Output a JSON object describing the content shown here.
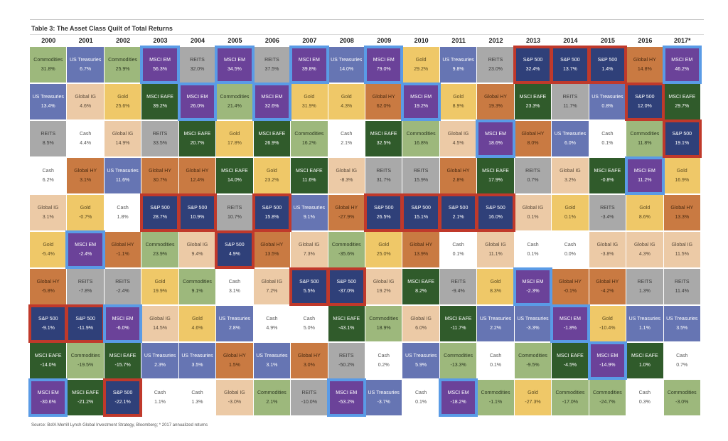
{
  "title": "Table 3: The Asset Class Quilt of Total Returns",
  "source": "Source: BofA Merrill Lynch Global Investment Strategy, Bloomberg; * 2017 annualized returns",
  "asset_colors": {
    "Commodities": {
      "bg": "#9db87c",
      "fg": "#2d3a22"
    },
    "US Treasuries": {
      "bg": "#6675b3",
      "fg": "#ffffff"
    },
    "Global IG": {
      "bg": "#eccaa6",
      "fg": "#5a4a3a"
    },
    "Gold": {
      "bg": "#efc868",
      "fg": "#5a4a20"
    },
    "REITS": {
      "bg": "#a9a9a9",
      "fg": "#3a3a3a"
    },
    "Cash": {
      "bg": "#ffffff",
      "fg": "#555555"
    },
    "Global HY": {
      "bg": "#c97a42",
      "fg": "#4a2a10"
    },
    "MSCI EAFE": {
      "bg": "#305b2b",
      "fg": "#ffffff"
    },
    "MSCI EM": {
      "bg": "#6b4299",
      "fg": "#ffffff"
    },
    "S&P 500": {
      "bg": "#2f4079",
      "fg": "#ffffff"
    }
  },
  "chart_data": {
    "type": "table",
    "title": "Table 3: The Asset Class Quilt of Total Returns",
    "highlight": {
      "MSCI EM": "blue outline",
      "S&P 500": "red outline"
    },
    "columns": [
      {
        "year": "2000",
        "cells": [
          [
            "Commodities",
            "31.8%"
          ],
          [
            "US Treasuries",
            "13.4%"
          ],
          [
            "REITS",
            "8.5%"
          ],
          [
            "Cash",
            "6.2%"
          ],
          [
            "Global IG",
            "3.1%"
          ],
          [
            "Gold",
            "-5.4%"
          ],
          [
            "Global HY",
            "-5.8%"
          ],
          [
            "S&P 500",
            "-9.1%"
          ],
          [
            "MSCI EAFE",
            "-14.0%"
          ],
          [
            "MSCI EM",
            "-30.6%"
          ]
        ]
      },
      {
        "year": "2001",
        "cells": [
          [
            "US Treasuries",
            "6.7%"
          ],
          [
            "Global IG",
            "4.6%"
          ],
          [
            "Cash",
            "4.4%"
          ],
          [
            "Global HY",
            "3.1%"
          ],
          [
            "Gold",
            "-0.7%"
          ],
          [
            "MSCI EM",
            "-2.4%"
          ],
          [
            "REITS",
            "-7.8%"
          ],
          [
            "S&P 500",
            "-11.9%"
          ],
          [
            "Commodities",
            "-19.5%"
          ],
          [
            "MSCI EAFE",
            "-21.2%"
          ]
        ]
      },
      {
        "year": "2002",
        "cells": [
          [
            "Commodities",
            "25.9%"
          ],
          [
            "Gold",
            "25.6%"
          ],
          [
            "Global IG",
            "14.9%"
          ],
          [
            "US Treasuries",
            "11.6%"
          ],
          [
            "Cash",
            "1.8%"
          ],
          [
            "Global HY",
            "-1.1%"
          ],
          [
            "REITS",
            "-2.4%"
          ],
          [
            "MSCI EM",
            "-6.0%"
          ],
          [
            "MSCI EAFE",
            "-15.7%"
          ],
          [
            "S&P 500",
            "-22.1%"
          ]
        ]
      },
      {
        "year": "2003",
        "cells": [
          [
            "MSCI EM",
            "56.3%"
          ],
          [
            "MSCI EAFE",
            "39.2%"
          ],
          [
            "REITS",
            "33.5%"
          ],
          [
            "Global HY",
            "30.7%"
          ],
          [
            "S&P 500",
            "28.7%"
          ],
          [
            "Commodities",
            "23.9%"
          ],
          [
            "Gold",
            "19.9%"
          ],
          [
            "Global IG",
            "14.5%"
          ],
          [
            "US Treasuries",
            "2.3%"
          ],
          [
            "Cash",
            "1.1%"
          ]
        ]
      },
      {
        "year": "2004",
        "cells": [
          [
            "REITS",
            "32.0%"
          ],
          [
            "MSCI EM",
            "26.0%"
          ],
          [
            "MSCI EAFE",
            "20.7%"
          ],
          [
            "Global HY",
            "12.4%"
          ],
          [
            "S&P 500",
            "10.9%"
          ],
          [
            "Global IG",
            "9.4%"
          ],
          [
            "Commodities",
            "9.1%"
          ],
          [
            "Gold",
            "4.6%"
          ],
          [
            "US Treasuries",
            "3.5%"
          ],
          [
            "Cash",
            "1.3%"
          ]
        ]
      },
      {
        "year": "2005",
        "cells": [
          [
            "MSCI EM",
            "34.5%"
          ],
          [
            "Commodities",
            "21.4%"
          ],
          [
            "Gold",
            "17.8%"
          ],
          [
            "MSCI EAFE",
            "14.0%"
          ],
          [
            "REITS",
            "10.7%"
          ],
          [
            "S&P 500",
            "4.9%"
          ],
          [
            "Cash",
            "3.1%"
          ],
          [
            "US Treasuries",
            "2.8%"
          ],
          [
            "Global HY",
            "1.5%"
          ],
          [
            "Global IG",
            "-3.0%"
          ]
        ]
      },
      {
        "year": "2006",
        "cells": [
          [
            "REITS",
            "37.5%"
          ],
          [
            "MSCI EM",
            "32.6%"
          ],
          [
            "MSCI EAFE",
            "26.9%"
          ],
          [
            "Gold",
            "23.2%"
          ],
          [
            "S&P 500",
            "15.8%"
          ],
          [
            "Global HY",
            "13.5%"
          ],
          [
            "Global IG",
            "7.2%"
          ],
          [
            "Cash",
            "4.9%"
          ],
          [
            "US Treasuries",
            "3.1%"
          ],
          [
            "Commodities",
            "2.1%"
          ]
        ]
      },
      {
        "year": "2007",
        "cells": [
          [
            "MSCI EM",
            "39.8%"
          ],
          [
            "Gold",
            "31.9%"
          ],
          [
            "Commodities",
            "16.2%"
          ],
          [
            "MSCI EAFE",
            "11.6%"
          ],
          [
            "US Treasuries",
            "9.1%"
          ],
          [
            "Global IG",
            "7.3%"
          ],
          [
            "S&P 500",
            "5.5%"
          ],
          [
            "Cash",
            "5.0%"
          ],
          [
            "Global HY",
            "3.0%"
          ],
          [
            "REITS",
            "-10.0%"
          ]
        ]
      },
      {
        "year": "2008",
        "cells": [
          [
            "US Treasuries",
            "14.0%"
          ],
          [
            "Gold",
            "4.3%"
          ],
          [
            "Cash",
            "2.1%"
          ],
          [
            "Global IG",
            "-8.3%"
          ],
          [
            "Global HY",
            "-27.9%"
          ],
          [
            "Commodities",
            "-35.6%"
          ],
          [
            "S&P 500",
            "-37.0%"
          ],
          [
            "MSCI EAFE",
            "-43.1%"
          ],
          [
            "REITS",
            "-50.2%"
          ],
          [
            "MSCI EM",
            "-53.2%"
          ]
        ]
      },
      {
        "year": "2009",
        "cells": [
          [
            "MSCI EM",
            "79.0%"
          ],
          [
            "Global HY",
            "62.0%"
          ],
          [
            "MSCI EAFE",
            "32.5%"
          ],
          [
            "REITS",
            "31.7%"
          ],
          [
            "S&P 500",
            "26.5%"
          ],
          [
            "Gold",
            "25.0%"
          ],
          [
            "Global IG",
            "19.2%"
          ],
          [
            "Commodities",
            "18.9%"
          ],
          [
            "Cash",
            "0.2%"
          ],
          [
            "US Treasuries",
            "-3.7%"
          ]
        ]
      },
      {
        "year": "2010",
        "cells": [
          [
            "Gold",
            "29.2%"
          ],
          [
            "MSCI EM",
            "19.2%"
          ],
          [
            "Commodities",
            "16.8%"
          ],
          [
            "REITS",
            "15.9%"
          ],
          [
            "S&P 500",
            "15.1%"
          ],
          [
            "Global HY",
            "13.9%"
          ],
          [
            "MSCI EAFE",
            "8.2%"
          ],
          [
            "Global IG",
            "6.0%"
          ],
          [
            "US Treasuries",
            "5.9%"
          ],
          [
            "Cash",
            "0.1%"
          ]
        ]
      },
      {
        "year": "2011",
        "cells": [
          [
            "US Treasuries",
            "9.8%"
          ],
          [
            "Gold",
            "8.9%"
          ],
          [
            "Global IG",
            "4.5%"
          ],
          [
            "Global HY",
            "2.8%"
          ],
          [
            "S&P 500",
            "2.1%"
          ],
          [
            "Cash",
            "0.1%"
          ],
          [
            "REITS",
            "-9.4%"
          ],
          [
            "MSCI EAFE",
            "-11.7%"
          ],
          [
            "Commodities",
            "-13.3%"
          ],
          [
            "MSCI EM",
            "-18.2%"
          ]
        ]
      },
      {
        "year": "2012",
        "cells": [
          [
            "REITS",
            "23.0%"
          ],
          [
            "Global HY",
            "19.3%"
          ],
          [
            "MSCI EM",
            "18.6%"
          ],
          [
            "MSCI EAFE",
            "17.9%"
          ],
          [
            "S&P 500",
            "16.0%"
          ],
          [
            "Global IG",
            "11.1%"
          ],
          [
            "Gold",
            "8.3%"
          ],
          [
            "US Treasuries",
            "2.2%"
          ],
          [
            "Cash",
            "0.1%"
          ],
          [
            "Commodities",
            "-1.1%"
          ]
        ]
      },
      {
        "year": "2013",
        "cells": [
          [
            "S&P 500",
            "32.4%"
          ],
          [
            "MSCI EAFE",
            "23.3%"
          ],
          [
            "Global HY",
            "8.0%"
          ],
          [
            "REITS",
            "0.7%"
          ],
          [
            "Global IG",
            "0.1%"
          ],
          [
            "Cash",
            "0.1%"
          ],
          [
            "MSCI EM",
            "-2.3%"
          ],
          [
            "US Treasuries",
            "-3.3%"
          ],
          [
            "Commodities",
            "-9.5%"
          ],
          [
            "Gold",
            "-27.3%"
          ]
        ]
      },
      {
        "year": "2014",
        "cells": [
          [
            "S&P 500",
            "13.7%"
          ],
          [
            "REITS",
            "11.7%"
          ],
          [
            "US Treasuries",
            "6.0%"
          ],
          [
            "Global IG",
            "3.2%"
          ],
          [
            "Gold",
            "0.1%"
          ],
          [
            "Cash",
            "0.0%"
          ],
          [
            "Global HY",
            "-0.1%"
          ],
          [
            "MSCI EM",
            "-1.8%"
          ],
          [
            "MSCI EAFE",
            "-4.5%"
          ],
          [
            "Commodities",
            "-17.0%"
          ]
        ]
      },
      {
        "year": "2015",
        "cells": [
          [
            "S&P 500",
            "1.4%"
          ],
          [
            "US Treasuries",
            "0.8%"
          ],
          [
            "Cash",
            "0.1%"
          ],
          [
            "MSCI EAFE",
            "-0.8%"
          ],
          [
            "REITS",
            "-3.4%"
          ],
          [
            "Global IG",
            "-3.8%"
          ],
          [
            "Global HY",
            "-4.2%"
          ],
          [
            "Gold",
            "-10.4%"
          ],
          [
            "MSCI EM",
            "-14.9%"
          ],
          [
            "Commodities",
            "-24.7%"
          ]
        ]
      },
      {
        "year": "2016",
        "cells": [
          [
            "Global HY",
            "14.8%"
          ],
          [
            "S&P 500",
            "12.0%"
          ],
          [
            "Commodities",
            "11.8%"
          ],
          [
            "MSCI EM",
            "11.2%"
          ],
          [
            "Gold",
            "8.6%"
          ],
          [
            "Global IG",
            "4.3%"
          ],
          [
            "REITS",
            "1.3%"
          ],
          [
            "US Treasuries",
            "1.1%"
          ],
          [
            "MSCI EAFE",
            "1.0%"
          ],
          [
            "Cash",
            "0.3%"
          ]
        ]
      },
      {
        "year": "2017*",
        "cells": [
          [
            "MSCI EM",
            "46.2%"
          ],
          [
            "MSCI EAFE",
            "29.7%"
          ],
          [
            "S&P 500",
            "19.1%"
          ],
          [
            "Gold",
            "16.9%"
          ],
          [
            "Global HY",
            "13.3%"
          ],
          [
            "Global IG",
            "11.5%"
          ],
          [
            "REITS",
            "11.4%"
          ],
          [
            "US Treasuries",
            "3.5%"
          ],
          [
            "Cash",
            "0.7%"
          ],
          [
            "Commodities",
            "-3.0%"
          ]
        ]
      }
    ]
  }
}
